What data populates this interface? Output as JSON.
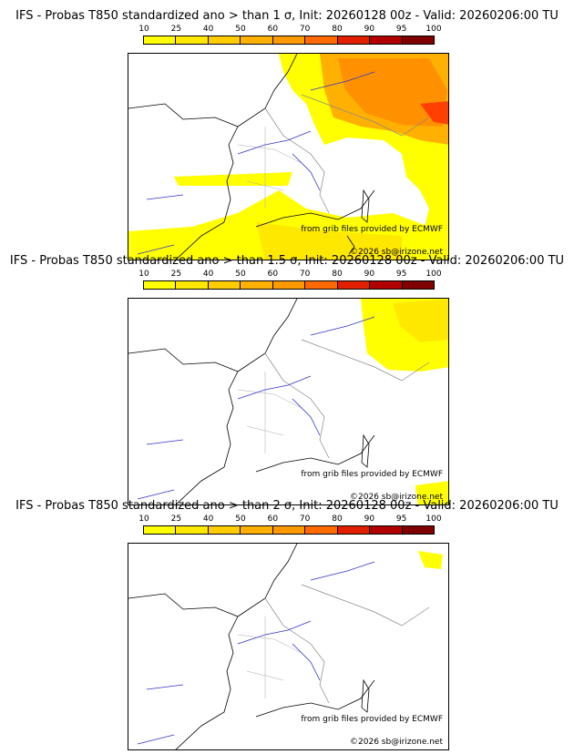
{
  "colorbar": {
    "ticks": [
      "10",
      "25",
      "40",
      "50",
      "60",
      "70",
      "80",
      "90",
      "95",
      "100"
    ],
    "colors": [
      "#ffff00",
      "#ffe800",
      "#ffcc00",
      "#ffb000",
      "#ff9900",
      "#ff6a00",
      "#e02000",
      "#b00000",
      "#800000"
    ]
  },
  "panels": [
    {
      "title": "IFS - Probas T850  standardized ano > than 1 σ, Init: 20260128 00z - Valid: 20260206:00 TU",
      "source_note": "from grib files provided by ECMWF",
      "copyright": "©2026 sb@irizone.net"
    },
    {
      "title": "IFS - Probas T850  standardized ano > than 1.5 σ, Init: 20260128 00z - Valid: 20260206:00 TU",
      "source_note": "from grib files provided by ECMWF",
      "copyright": "©2026 sb@irizone.net"
    },
    {
      "title": "IFS - Probas T850  standardized ano > than 2 σ, Init: 20260128 00z - Valid: 20260206:00 TU",
      "source_note": "from grib files provided by ECMWF",
      "copyright": "©2026 sb@irizone.net"
    }
  ]
}
